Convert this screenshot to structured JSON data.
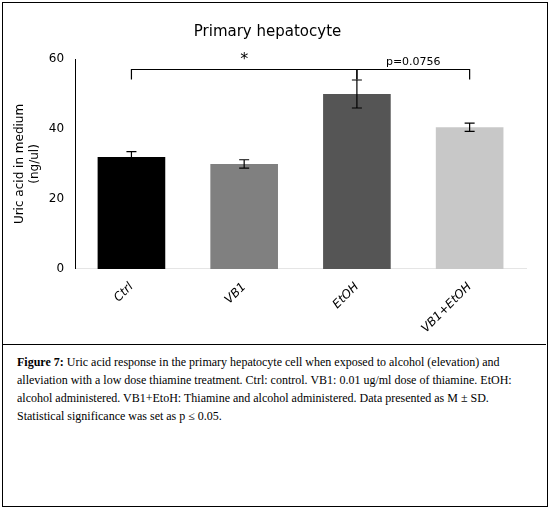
{
  "chart_data": {
    "type": "bar",
    "title": "Primary hepatocyte",
    "ylabel": "Uric acid in medium\n(ng/ul)",
    "categories": [
      "Ctrl",
      "VB1",
      "EtOH",
      "VB1+EtOH"
    ],
    "values": [
      32.0,
      30.0,
      50.0,
      40.5
    ],
    "errors": [
      1.5,
      1.2,
      4.0,
      1.2
    ],
    "colors": [
      "#000000",
      "#808080",
      "#555555",
      "#c8c8c8"
    ],
    "ylim": [
      0,
      60
    ],
    "yticks": [
      0,
      20,
      40,
      60
    ],
    "grid": false,
    "brackets": [
      {
        "from": "Ctrl",
        "to": "EtOH",
        "y": 57,
        "label": "*"
      },
      {
        "from": "EtOH",
        "to": "VB1+EtOH",
        "y": 57,
        "label": "p=0.0756"
      }
    ],
    "caption_bold": "Figure 7:",
    "caption": " Uric acid response in the primary hepatocyte cell when exposed to alcohol (elevation) and alleviation with a low dose thiamine treatment. Ctrl: control. VB1: 0.01 ug/ml dose of thiamine. EtOH: alcohol administered. VB1+EtoH: Thiamine and alcohol administered. Data presented as M ± SD. Statistical significance was set as p ≤ 0.05."
  }
}
